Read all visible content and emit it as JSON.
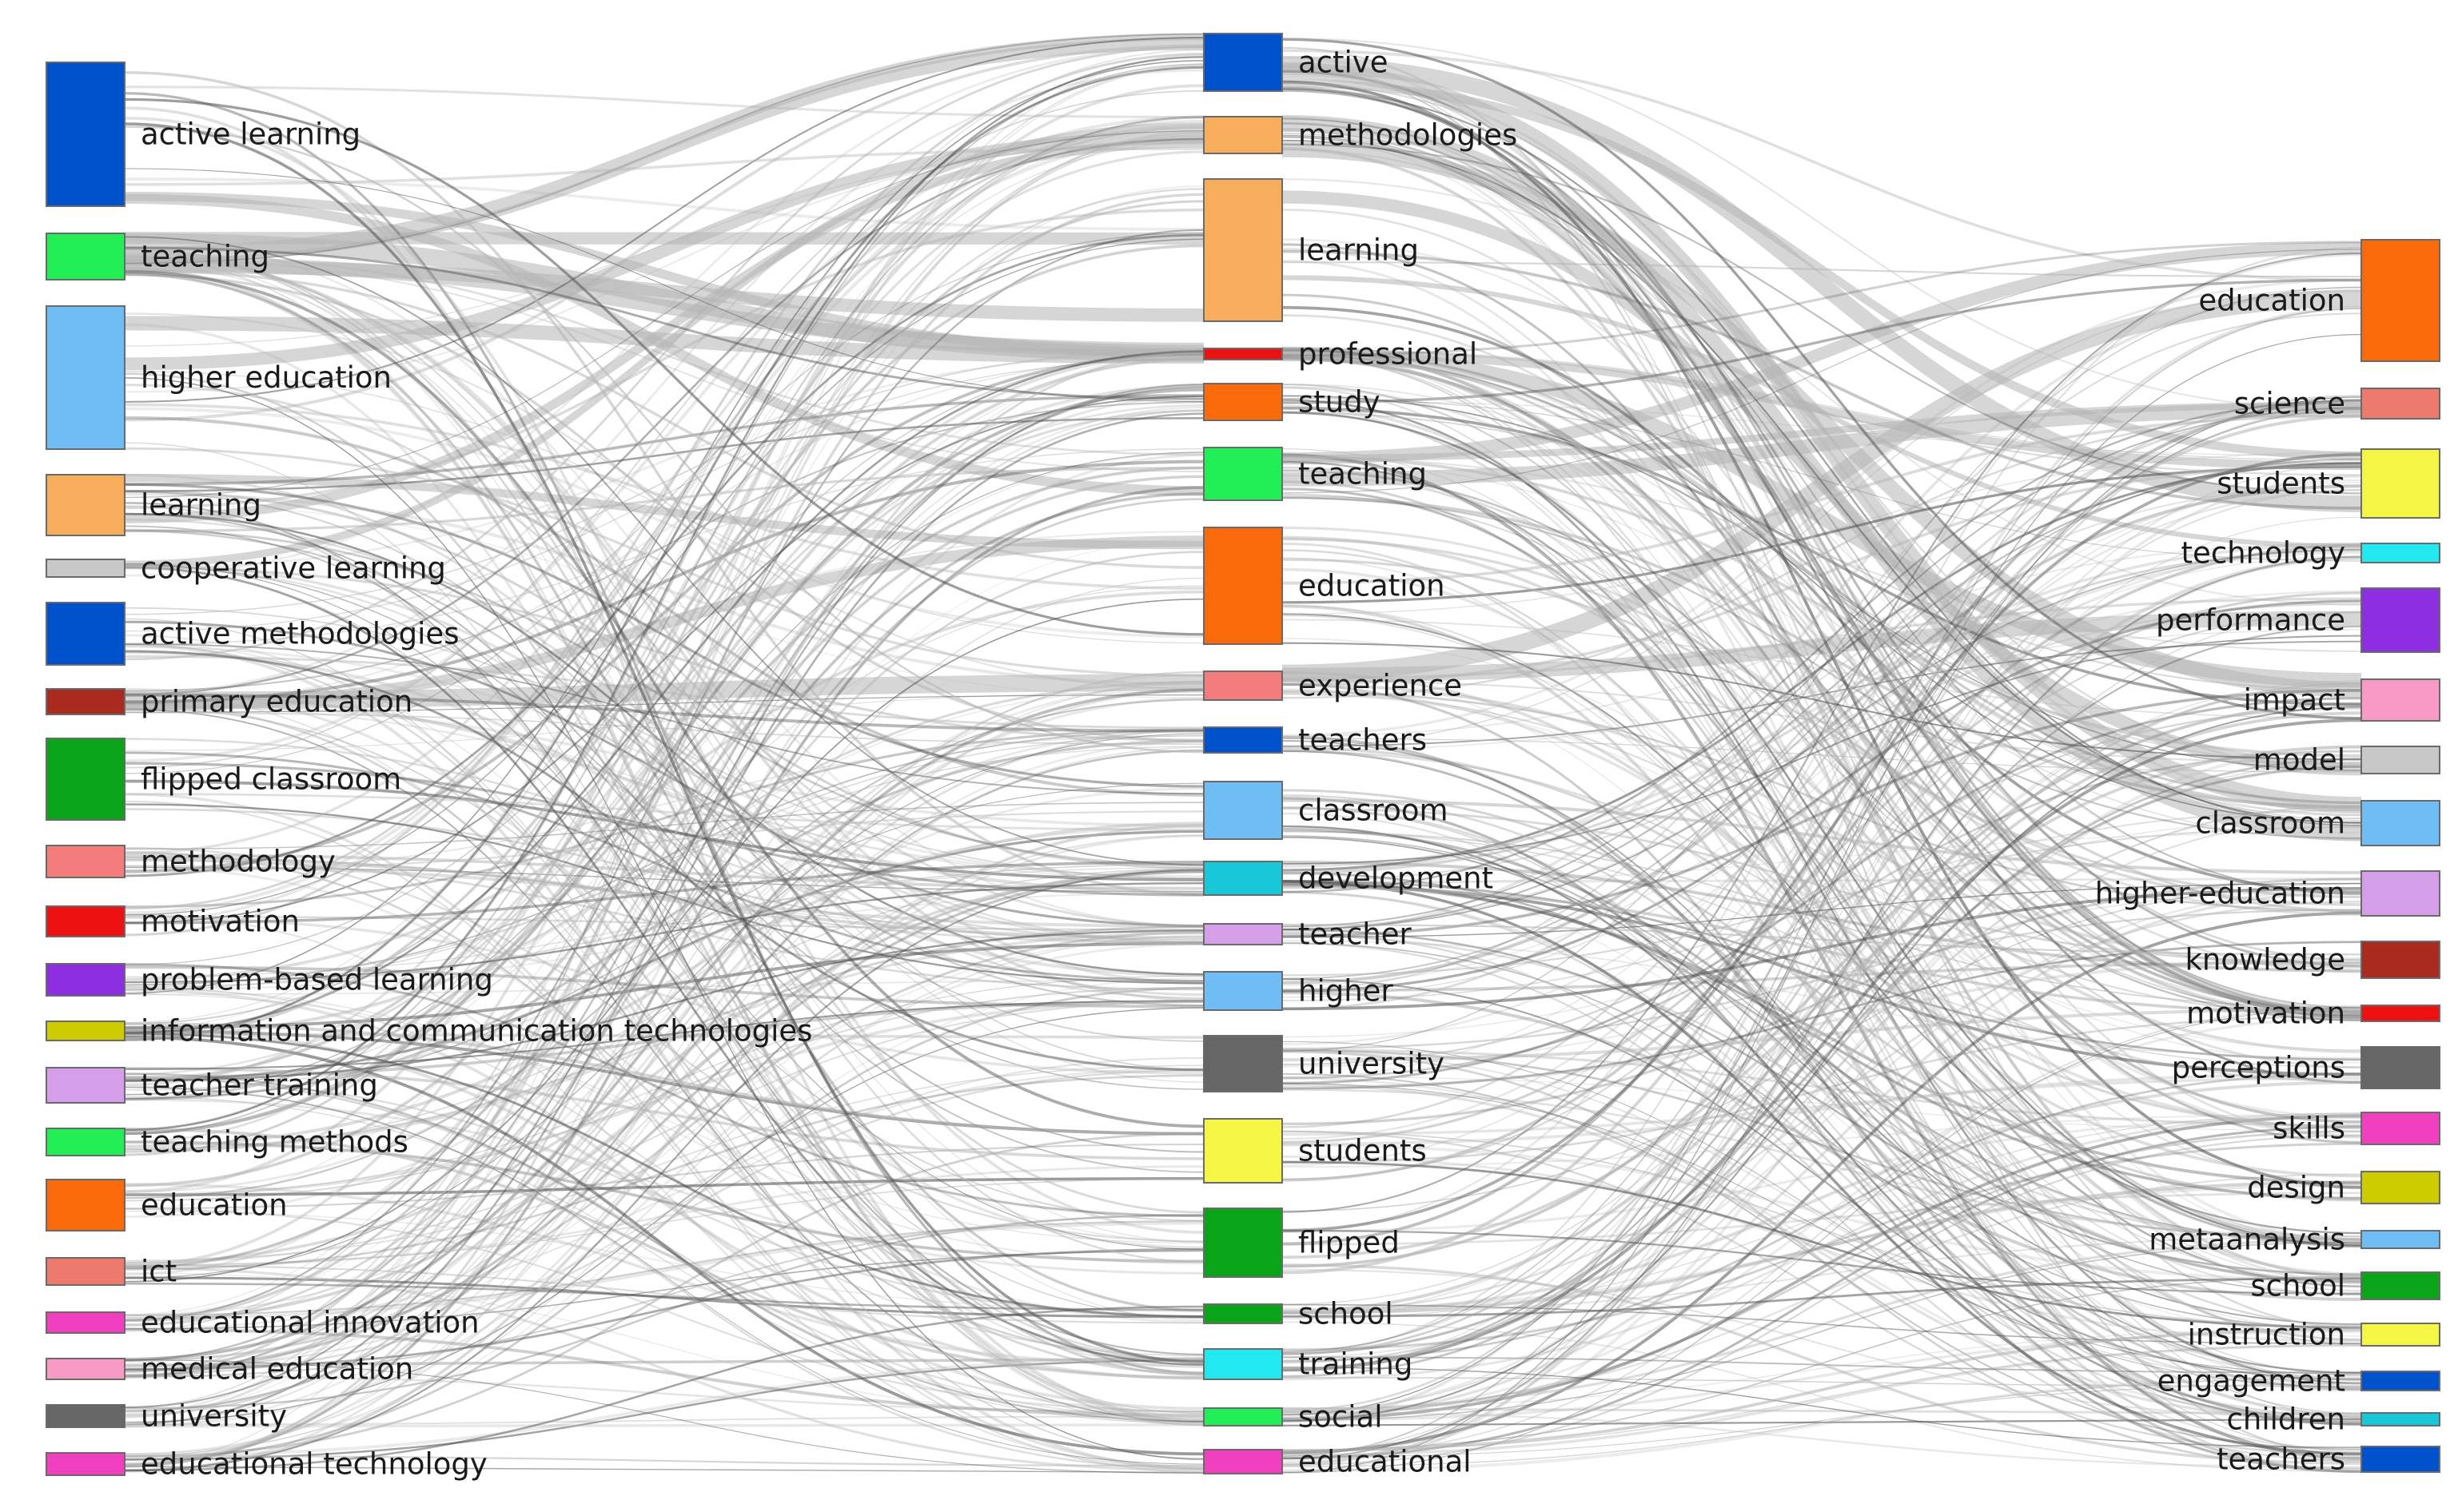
{
  "diagram": {
    "type": "three-field-plot",
    "columns": [
      {
        "id": "left",
        "nodes": [
          {
            "label": "active learning",
            "color": "#0052cc"
          },
          {
            "label": "teaching",
            "color": "#22ee55"
          },
          {
            "label": "higher education",
            "color": "#6ebdf5"
          },
          {
            "label": "learning",
            "color": "#f8ad5c"
          },
          {
            "label": "cooperative learning",
            "color": "#c8c8c8"
          },
          {
            "label": "active methodologies",
            "color": "#0052cc"
          },
          {
            "label": "primary education",
            "color": "#a92a1e"
          },
          {
            "label": "flipped classroom",
            "color": "#0aa418"
          },
          {
            "label": "methodology",
            "color": "#f47c7c"
          },
          {
            "label": "motivation",
            "color": "#ee1111"
          },
          {
            "label": "problem-based learning",
            "color": "#8d2fe0"
          },
          {
            "label": "information and communication technologies",
            "color": "#cccc00"
          },
          {
            "label": "teacher training",
            "color": "#d59ee8"
          },
          {
            "label": "teaching methods",
            "color": "#22ee55"
          },
          {
            "label": "education",
            "color": "#fa6a0a"
          },
          {
            "label": "ict",
            "color": "#ee7a6e"
          },
          {
            "label": "educational innovation",
            "color": "#f040c0"
          },
          {
            "label": "medical education",
            "color": "#f79ac6"
          },
          {
            "label": "university",
            "color": "#666666"
          },
          {
            "label": "educational technology",
            "color": "#f040c0"
          }
        ]
      },
      {
        "id": "middle",
        "nodes": [
          {
            "label": "active",
            "color": "#0052cc"
          },
          {
            "label": "methodologies",
            "color": "#f8ad5c"
          },
          {
            "label": "learning",
            "color": "#f8ad5c"
          },
          {
            "label": "professional",
            "color": "#ee1111"
          },
          {
            "label": "study",
            "color": "#fa6a0a"
          },
          {
            "label": "teaching",
            "color": "#22ee55"
          },
          {
            "label": "education",
            "color": "#fa6a0a"
          },
          {
            "label": "experience",
            "color": "#f47c7c"
          },
          {
            "label": "teachers",
            "color": "#0052cc"
          },
          {
            "label": "classroom",
            "color": "#6ebdf5"
          },
          {
            "label": "development",
            "color": "#18c8d8"
          },
          {
            "label": "teacher",
            "color": "#d59ee8"
          },
          {
            "label": "higher",
            "color": "#6ebdf5"
          },
          {
            "label": "university",
            "color": "#666666"
          },
          {
            "label": "students",
            "color": "#f5f545"
          },
          {
            "label": "flipped",
            "color": "#0aa418"
          },
          {
            "label": "school",
            "color": "#0aa418"
          },
          {
            "label": "training",
            "color": "#22e8f0"
          },
          {
            "label": "social",
            "color": "#22ee55"
          },
          {
            "label": "educational",
            "color": "#f040c0"
          }
        ]
      },
      {
        "id": "right",
        "nodes": [
          {
            "label": "education",
            "color": "#fa6a0a"
          },
          {
            "label": "science",
            "color": "#ee7a6e"
          },
          {
            "label": "students",
            "color": "#f5f545"
          },
          {
            "label": "technology",
            "color": "#22e8f0"
          },
          {
            "label": "performance",
            "color": "#8d2fe0"
          },
          {
            "label": "impact",
            "color": "#f79ac6"
          },
          {
            "label": "model",
            "color": "#c8c8c8"
          },
          {
            "label": "classroom",
            "color": "#6ebdf5"
          },
          {
            "label": "higher-education",
            "color": "#d59ee8"
          },
          {
            "label": "knowledge",
            "color": "#a92a1e"
          },
          {
            "label": "motivation",
            "color": "#ee1111"
          },
          {
            "label": "perceptions",
            "color": "#666666"
          },
          {
            "label": "skills",
            "color": "#f040c0"
          },
          {
            "label": "design",
            "color": "#cccc00"
          },
          {
            "label": "metaanalysis",
            "color": "#6ebdf5"
          },
          {
            "label": "school",
            "color": "#0aa418"
          },
          {
            "label": "instruction",
            "color": "#f5f545"
          },
          {
            "label": "engagement",
            "color": "#0052cc"
          },
          {
            "label": "children",
            "color": "#18c8d8"
          },
          {
            "label": "teachers",
            "color": "#0052cc"
          }
        ]
      }
    ],
    "flow_color": "#b4b4b4"
  }
}
